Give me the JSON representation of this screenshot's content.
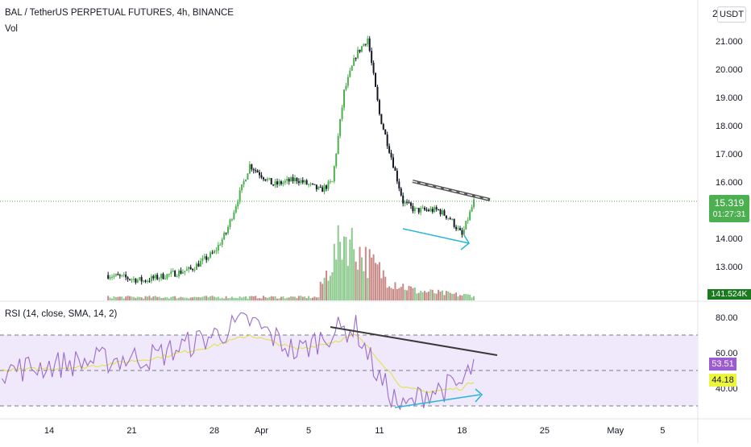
{
  "header": {
    "symbol_title": "BAL / TetherUS PERPETUAL FUTURES, 4h, BINANCE",
    "vol_label": "Vol",
    "currency_button": "USDT",
    "scale_partial": "2"
  },
  "rsi_header": {
    "label": "RSI (14, close, SMA, 14, 2)"
  },
  "price_axis": {
    "ticks": [
      "21.000",
      "20.000",
      "19.000",
      "18.000",
      "17.000",
      "16.000",
      "14.000",
      "13.000"
    ],
    "tick_values": [
      21,
      20,
      19,
      18,
      17,
      16,
      14,
      13
    ]
  },
  "rsi_axis": {
    "ticks": [
      "80.00",
      "60.00",
      "40.00"
    ],
    "tick_values": [
      80,
      60,
      40
    ],
    "band_upper": 70,
    "band_mid": 50,
    "band_lower": 30
  },
  "time_axis": {
    "labels": [
      "14",
      "21",
      "28",
      "Apr",
      "5",
      "11",
      "18",
      "25",
      "May",
      "5"
    ]
  },
  "last_price": {
    "value": "15.319",
    "countdown": "01:27:31",
    "level": 15.319
  },
  "volume_tag": {
    "value": "141.524K"
  },
  "rsi_tags": {
    "rsi_value": "53.51",
    "rsi_ma_value": "44.18"
  },
  "colors": {
    "up": "#4caf50",
    "down": "#131722",
    "vol_up": "#8bc98d",
    "vol_down": "#c98a87",
    "rsi": "#9c6cc8",
    "rsi_ma": "#e2e24a",
    "band_fill": "#efe9fb",
    "divergence": "#26b6d8",
    "trendline": "#555555",
    "price_tag": "#4caf50",
    "rsi_tag": "#9c5bd1",
    "rsi_ma_tag": "#ecf53d",
    "vol_tag": "#1b7a1e"
  },
  "chart_data": [
    {
      "type": "candlestick",
      "title": "BAL / TetherUS PERPETUAL FUTURES, 4h, BINANCE",
      "xlabel": "",
      "ylabel": "",
      "ylim": [
        12.5,
        22.1
      ],
      "x_range": [
        "Mar 10",
        "May 8"
      ],
      "series": [
        {
          "name": "",
          "anchor_dates": [
            "Mar 19",
            "Mar 22",
            "Mar 26",
            "Mar 28",
            "Mar 29",
            "Mar 31",
            "Apr 2",
            "Apr 4",
            "Apr 6",
            "Apr 7",
            "Apr 8",
            "Apr 9",
            "Apr 10",
            "Apr 11",
            "Apr 12",
            "Apr 13",
            "Apr 14",
            "Apr 16",
            "Apr 17",
            "Apr 18",
            "Apr 19"
          ],
          "anchor_closes": [
            12.7,
            12.5,
            12.9,
            13.5,
            14.2,
            16.6,
            15.9,
            16.1,
            15.7,
            16.0,
            19.2,
            20.5,
            21.1,
            18.4,
            16.9,
            15.3,
            15.0,
            15.0,
            14.7,
            14.1,
            15.3
          ]
        }
      ],
      "annotations": [
        "descending resistance trendline",
        "lower-low divergence arrow"
      ]
    },
    {
      "type": "bar",
      "title": "Vol",
      "xlabel": "",
      "ylabel": "",
      "series": [
        {
          "name": "",
          "anchor_dates": [
            "Apr 6",
            "Apr 8",
            "Apr 10",
            "Apr 12",
            "Apr 14",
            "Apr 18"
          ],
          "anchor_values": [
            20,
            100,
            60,
            30,
            15,
            8
          ]
        }
      ]
    },
    {
      "type": "line",
      "title": "RSI (14, close, SMA, 14, 2)",
      "xlabel": "",
      "ylabel": "",
      "ylim": [
        22,
        92
      ],
      "bands": [
        30,
        50,
        70
      ],
      "series": [
        {
          "name": "",
          "anchor_dates": [
            "Mar 10",
            "Mar 17",
            "Mar 23",
            "Mar 28",
            "Mar 31",
            "Apr 4",
            "Apr 7",
            "Apr 9",
            "Apr 11",
            "Apr 13",
            "Apr 15",
            "Apr 18",
            "Apr 19"
          ],
          "anchor_values": [
            50,
            55,
            58,
            70,
            78,
            60,
            72,
            74,
            45,
            28,
            38,
            42,
            53.5
          ]
        },
        {
          "name": "",
          "anchor_dates": [
            "Mar 10",
            "Mar 17",
            "Mar 23",
            "Mar 28",
            "Mar 31",
            "Apr 4",
            "Apr 7",
            "Apr 9",
            "Apr 11",
            "Apr 13",
            "Apr 15",
            "Apr 18",
            "Apr 19"
          ],
          "anchor_values": [
            50,
            52,
            57,
            64,
            70,
            62,
            66,
            70,
            56,
            40,
            38,
            40,
            44.2
          ]
        }
      ],
      "annotations": [
        "descending RSI trendline",
        "rising divergence arrow"
      ]
    }
  ]
}
